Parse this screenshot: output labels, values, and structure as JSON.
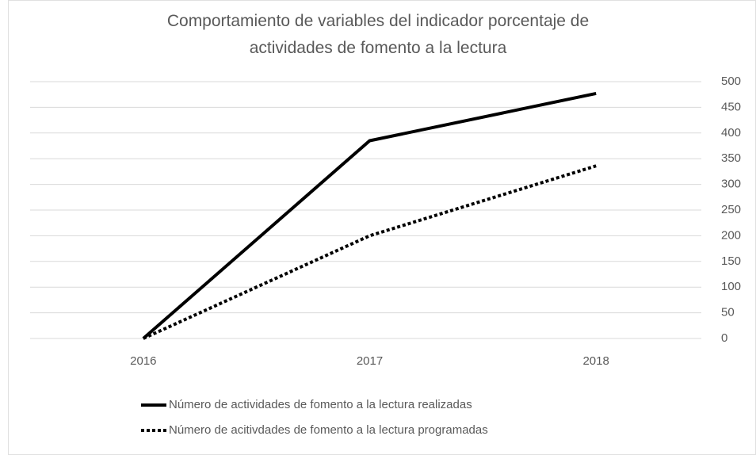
{
  "chart_data": {
    "type": "line",
    "title": "Comportamiento de variables del indicador porcentaje de actividades de fomento a la lectura",
    "categories": [
      "2016",
      "2017",
      "2018"
    ],
    "series": [
      {
        "name": "Número de actividades de fomento a la lectura realizadas",
        "color": "#000000",
        "dash": "solid",
        "values": [
          0,
          385,
          477
        ]
      },
      {
        "name": "Número de acitivdades de fomento a la lectura programadas",
        "color": "#000000",
        "dash": "dotted",
        "values": [
          0,
          200,
          336
        ]
      }
    ],
    "ylim": [
      0,
      500
    ],
    "yticks": [
      0,
      50,
      100,
      150,
      200,
      250,
      300,
      350,
      400,
      450,
      500
    ],
    "y_axis_side": "right",
    "grid": true,
    "legend": "bottom"
  }
}
